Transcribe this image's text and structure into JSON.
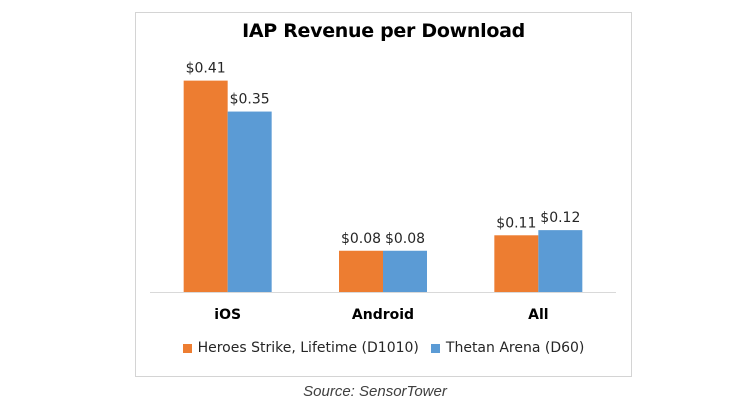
{
  "chart_data": {
    "type": "bar",
    "title": "IAP Revenue per Download",
    "categories": [
      "iOS",
      "Android",
      "All"
    ],
    "series": [
      {
        "name": "Heroes Strike, Lifetime (D1010)",
        "color": "#ed7d31",
        "values": [
          0.41,
          0.08,
          0.11
        ],
        "labels": [
          "$0.41",
          "$0.08",
          "$0.11"
        ]
      },
      {
        "name": "Thetan Arena (D60)",
        "color": "#5b9bd5",
        "values": [
          0.35,
          0.08,
          0.12
        ],
        "labels": [
          "$0.35",
          "$0.08",
          "$0.12"
        ]
      }
    ],
    "ylim": [
      0,
      0.45
    ],
    "grid": false,
    "legend_position": "bottom"
  },
  "source": "Source: SensorTower"
}
